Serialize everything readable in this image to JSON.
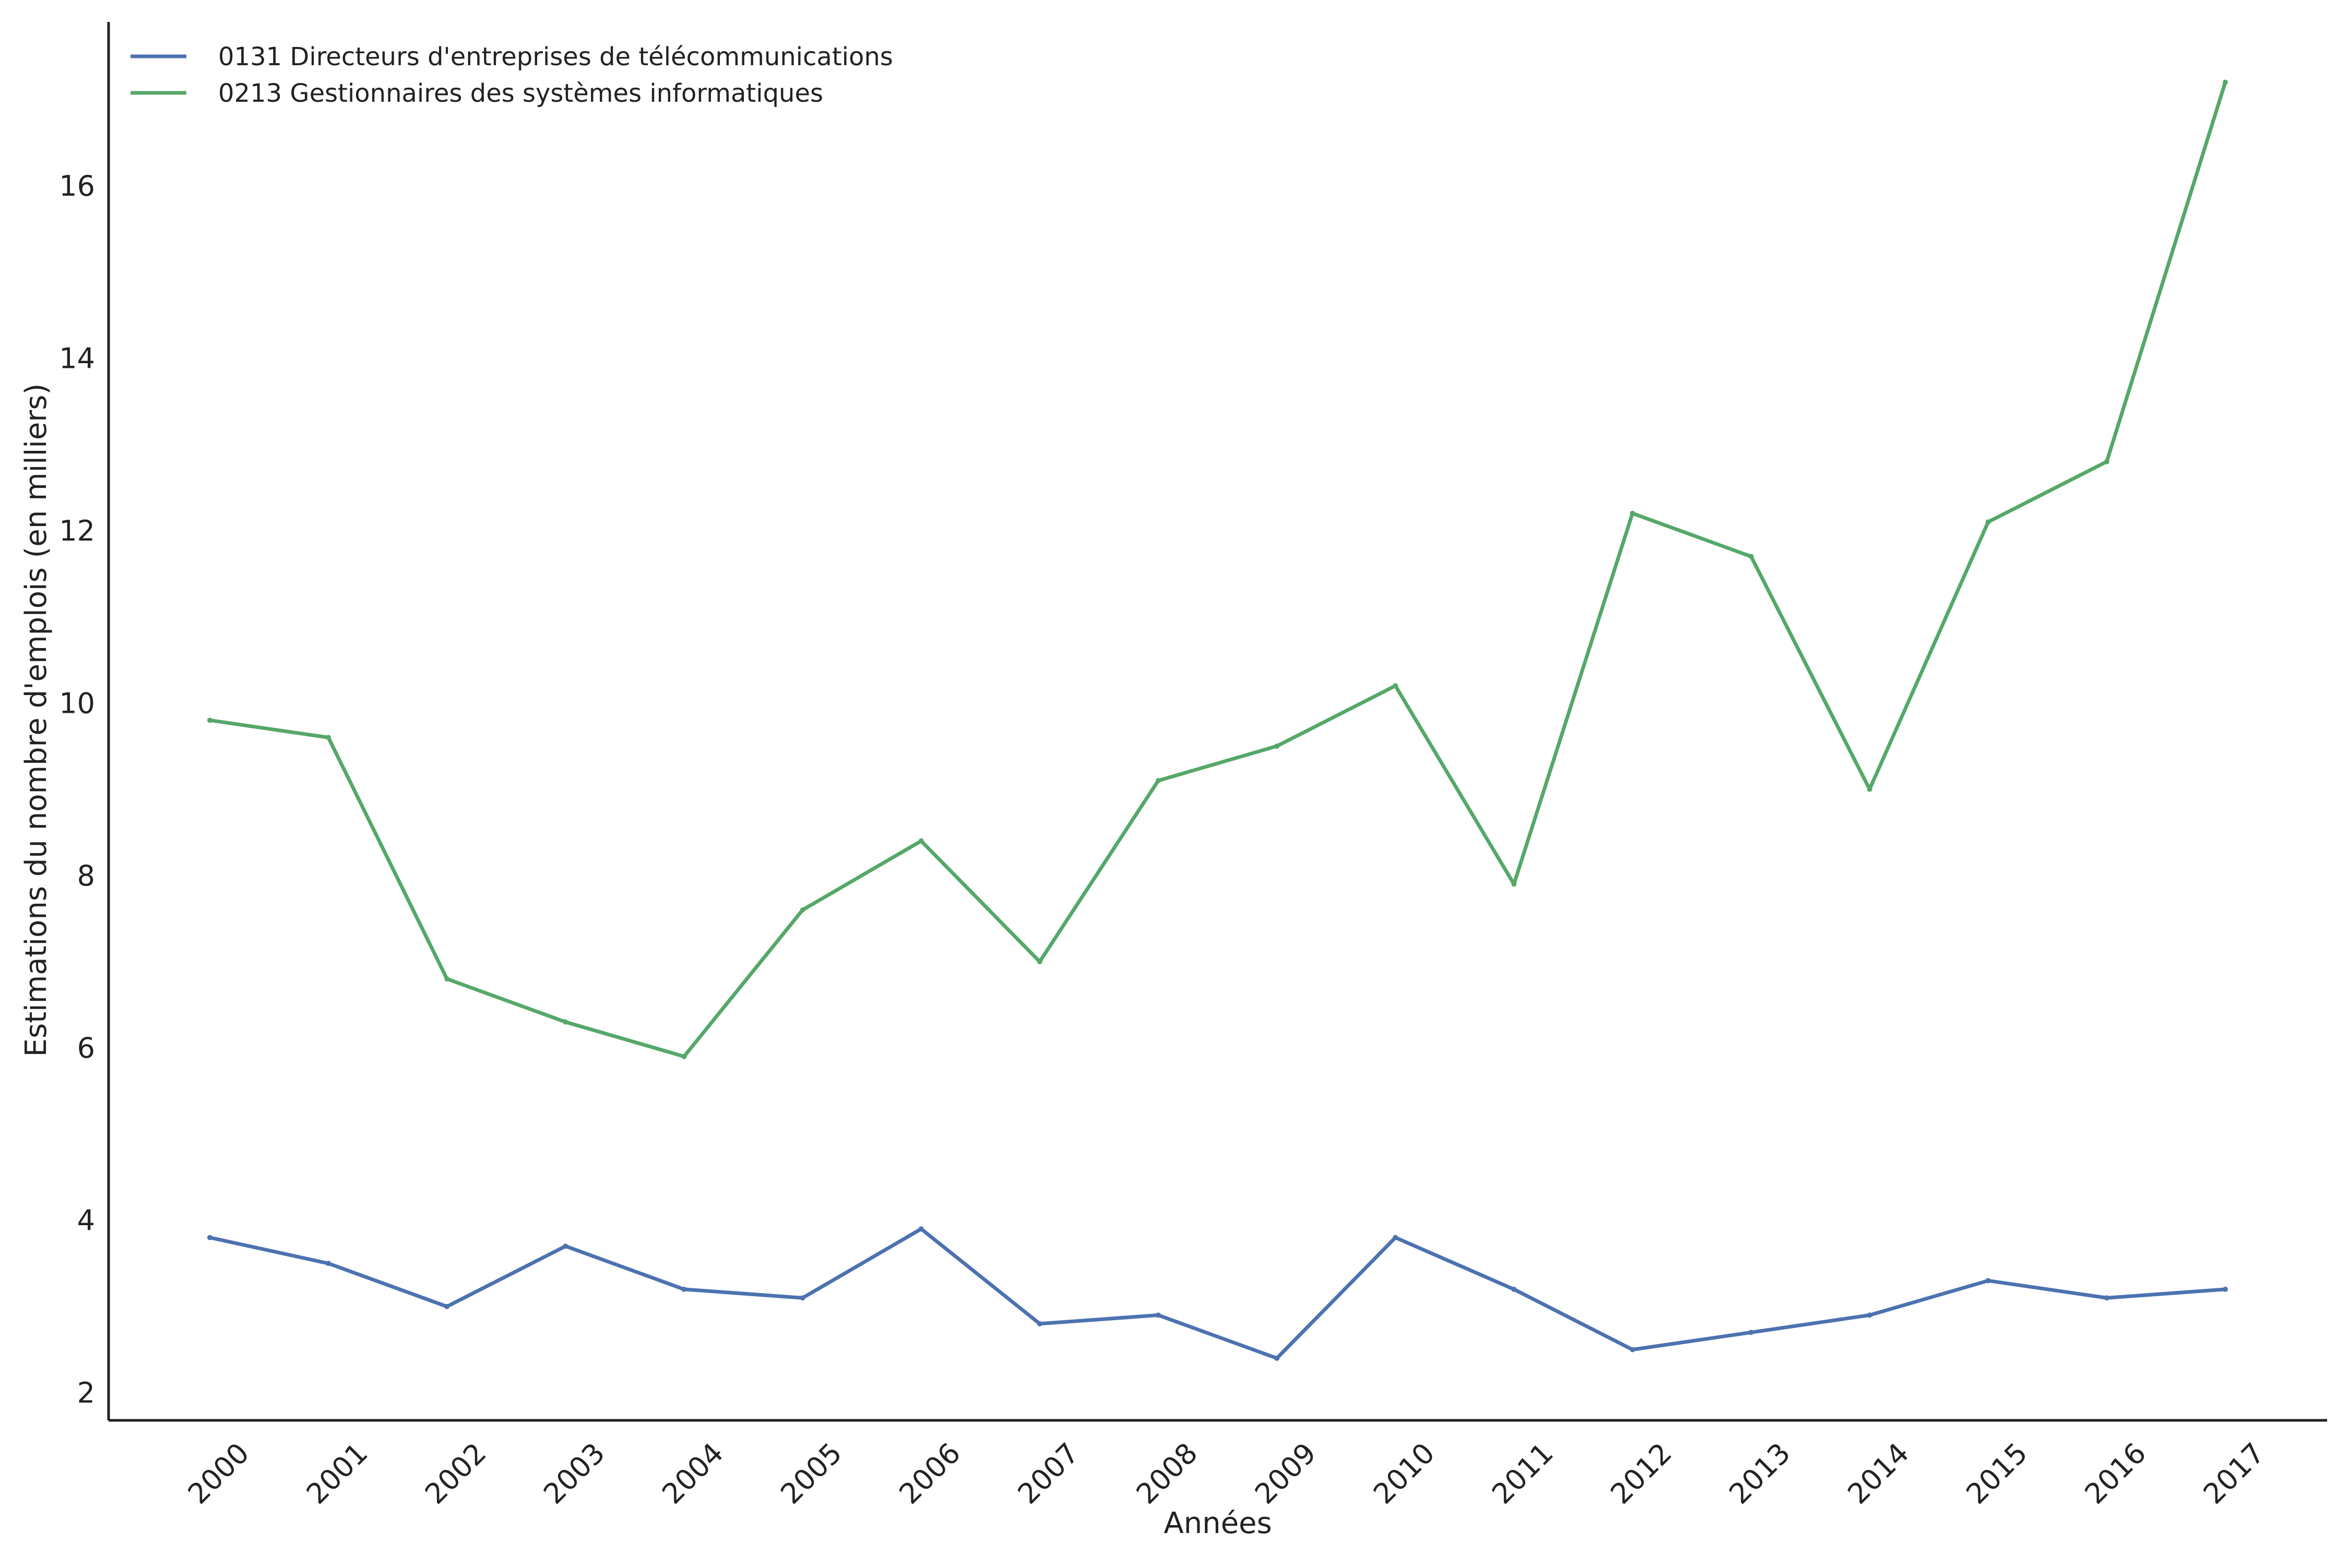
{
  "chart_data": {
    "type": "line",
    "title": "",
    "xlabel": "Années",
    "ylabel": "Estimations du nombre d'emplois (en milliers)",
    "categories": [
      "2000",
      "2001",
      "2002",
      "2003",
      "2004",
      "2005",
      "2006",
      "2007",
      "2008",
      "2009",
      "2010",
      "2011",
      "2012",
      "2013",
      "2014",
      "2015",
      "2016",
      "2017"
    ],
    "yticks": [
      2,
      4,
      6,
      8,
      10,
      12,
      14,
      16
    ],
    "ylim": [
      1.68,
      17.9
    ],
    "grid": false,
    "legend_position": "top-left",
    "series": [
      {
        "name": "0131 Directeurs d'entreprises de télécommunications",
        "color": "#4c72b0",
        "values": [
          3.8,
          3.5,
          3.0,
          3.7,
          3.2,
          3.1,
          3.9,
          2.8,
          2.9,
          2.4,
          3.8,
          3.2,
          2.5,
          2.7,
          2.9,
          3.3,
          3.1,
          3.2
        ]
      },
      {
        "name": "0213 Gestionnaires des systèmes informatiques",
        "color": "#55a868",
        "values": [
          9.8,
          9.6,
          6.8,
          6.3,
          5.9,
          7.6,
          8.4,
          7.0,
          9.1,
          9.5,
          10.2,
          7.9,
          12.2,
          11.7,
          9.0,
          12.1,
          12.8,
          17.2
        ]
      }
    ]
  }
}
